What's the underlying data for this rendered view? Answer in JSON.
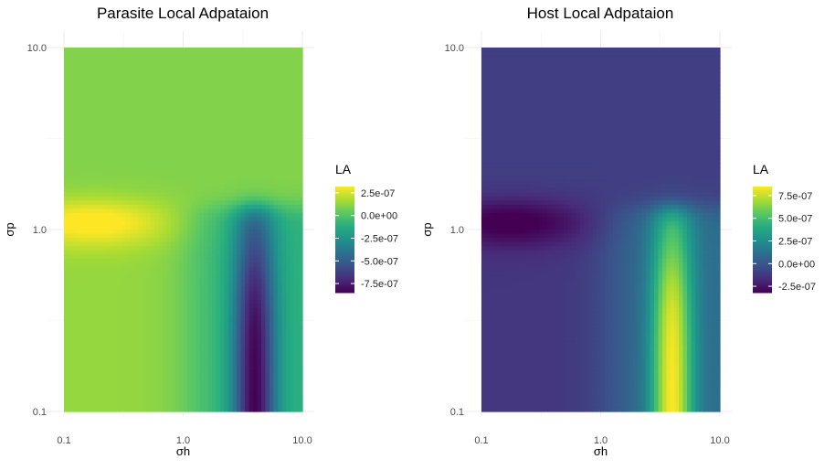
{
  "chart_data": [
    {
      "type": "heatmap",
      "title": "Parasite Local Adpataion",
      "xlabel": "σh",
      "ylabel": "σp",
      "x_scale": "log10",
      "y_scale": "log10",
      "xlim": [
        0.1,
        10.0
      ],
      "ylim": [
        0.1,
        10.0
      ],
      "x_ticks": [
        "0.1",
        "1.0",
        "10.0"
      ],
      "y_ticks": [
        "0.1",
        "1.0",
        "10.0"
      ],
      "legend": {
        "title": "LA",
        "placement": "right",
        "labels": [
          "2.5e-07",
          "0.0e+00",
          "-2.5e-07",
          "-5.0e-07",
          "-7.5e-07"
        ],
        "values": [
          2.5e-07,
          0,
          -2.5e-07,
          -5e-07,
          -7.5e-07
        ],
        "range": [
          -8.5e-07,
          3.2e-07
        ]
      },
      "colormap": "viridis",
      "grid": true,
      "field": {
        "background": 1e-07,
        "regions": [
          {
            "description": "high band at low sigma_h near sigma_p = 1",
            "center": [
              0.18,
              1.1
            ],
            "value": 3.2e-07
          },
          {
            "description": "negative trough at sigma_h around 4, sigma_p below 1.3",
            "center": [
              4.0,
              0.2
            ],
            "value": -8.5e-07
          }
        ]
      }
    },
    {
      "type": "heatmap",
      "title": "Host Local Adpataion",
      "xlabel": "σh",
      "ylabel": "σp",
      "x_scale": "log10",
      "y_scale": "log10",
      "xlim": [
        0.1,
        10.0
      ],
      "ylim": [
        0.1,
        10.0
      ],
      "x_ticks": [
        "0.1",
        "1.0",
        "10.0"
      ],
      "y_ticks": [
        "0.1",
        "1.0",
        "10.0"
      ],
      "legend": {
        "title": "LA",
        "placement": "right",
        "labels": [
          "7.5e-07",
          "5.0e-07",
          "2.5e-07",
          "0.0e+00",
          "-2.5e-07"
        ],
        "values": [
          7.5e-07,
          5e-07,
          2.5e-07,
          0,
          -2.5e-07
        ],
        "range": [
          -3.2e-07,
          8.5e-07
        ]
      },
      "colormap": "viridis",
      "grid": true,
      "field": {
        "background": -1e-07,
        "regions": [
          {
            "description": "low band at low sigma_h near sigma_p = 1",
            "center": [
              0.18,
              1.1
            ],
            "value": -3.2e-07
          },
          {
            "description": "positive peak at sigma_h around 4, sigma_p below 1.3",
            "center": [
              4.0,
              0.2
            ],
            "value": 8.5e-07
          }
        ]
      }
    }
  ]
}
